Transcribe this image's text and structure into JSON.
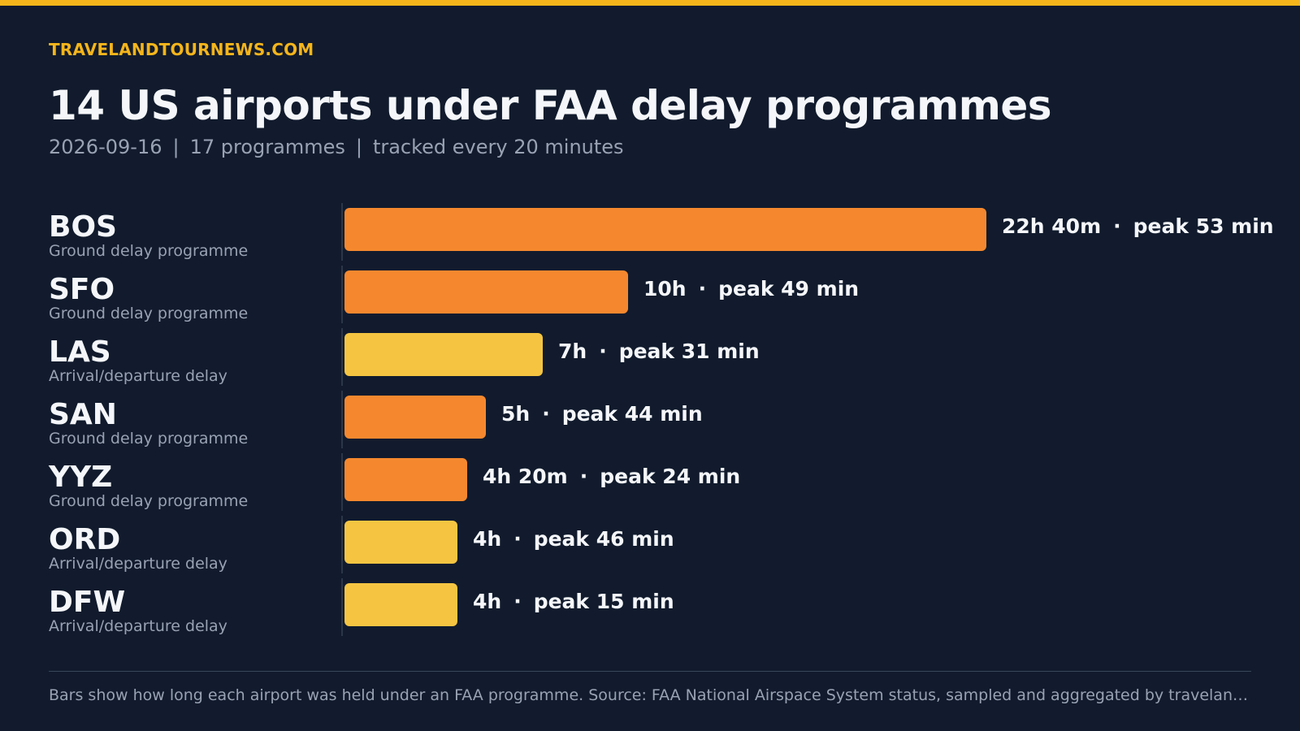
{
  "brand": "TRAVELANDTOURNEWS.COM",
  "title": "14 US airports under FAA delay programmes",
  "subtitle": {
    "date": "2026-09-16",
    "programmes": "17 programmes",
    "frequency": "tracked every 20 minutes",
    "separator": "|"
  },
  "colors": {
    "background": "#111b2d",
    "accent": "#f5b51b",
    "ground_delay": "#f5882e",
    "arrival_departure": "#f5c542"
  },
  "chart_data": {
    "type": "bar",
    "orientation": "horizontal",
    "units": "minutes",
    "categories": [
      "BOS",
      "SFO",
      "LAS",
      "SAN",
      "YYZ",
      "ORD",
      "DFW"
    ],
    "values": [
      1360,
      600,
      420,
      300,
      260,
      240,
      240
    ],
    "rows": [
      {
        "code": "BOS",
        "type": "Ground delay programme",
        "duration_label": "22h 40m",
        "duration_minutes": 1360,
        "peak_label": "peak 53 min",
        "peak_minutes": 53,
        "color": "#f5882e"
      },
      {
        "code": "SFO",
        "type": "Ground delay programme",
        "duration_label": "10h",
        "duration_minutes": 600,
        "peak_label": "peak 49 min",
        "peak_minutes": 49,
        "color": "#f5882e"
      },
      {
        "code": "LAS",
        "type": "Arrival/departure delay",
        "duration_label": "7h",
        "duration_minutes": 420,
        "peak_label": "peak 31 min",
        "peak_minutes": 31,
        "color": "#f5c542"
      },
      {
        "code": "SAN",
        "type": "Ground delay programme",
        "duration_label": "5h",
        "duration_minutes": 300,
        "peak_label": "peak 44 min",
        "peak_minutes": 44,
        "color": "#f5882e"
      },
      {
        "code": "YYZ",
        "type": "Ground delay programme",
        "duration_label": "4h 20m",
        "duration_minutes": 260,
        "peak_label": "peak 24 min",
        "peak_minutes": 24,
        "color": "#f5882e"
      },
      {
        "code": "ORD",
        "type": "Arrival/departure delay",
        "duration_label": "4h",
        "duration_minutes": 240,
        "peak_label": "peak 46 min",
        "peak_minutes": 46,
        "color": "#f5c542"
      },
      {
        "code": "DFW",
        "type": "Arrival/departure delay",
        "duration_label": "4h",
        "duration_minutes": 240,
        "peak_label": "peak 15 min",
        "peak_minutes": 15,
        "color": "#f5c542"
      }
    ],
    "separator": "·"
  },
  "footer": "Bars show how long each airport was held under an FAA programme. Source: FAA National Airspace System status, sampled and aggregated by travelandtournews.com"
}
